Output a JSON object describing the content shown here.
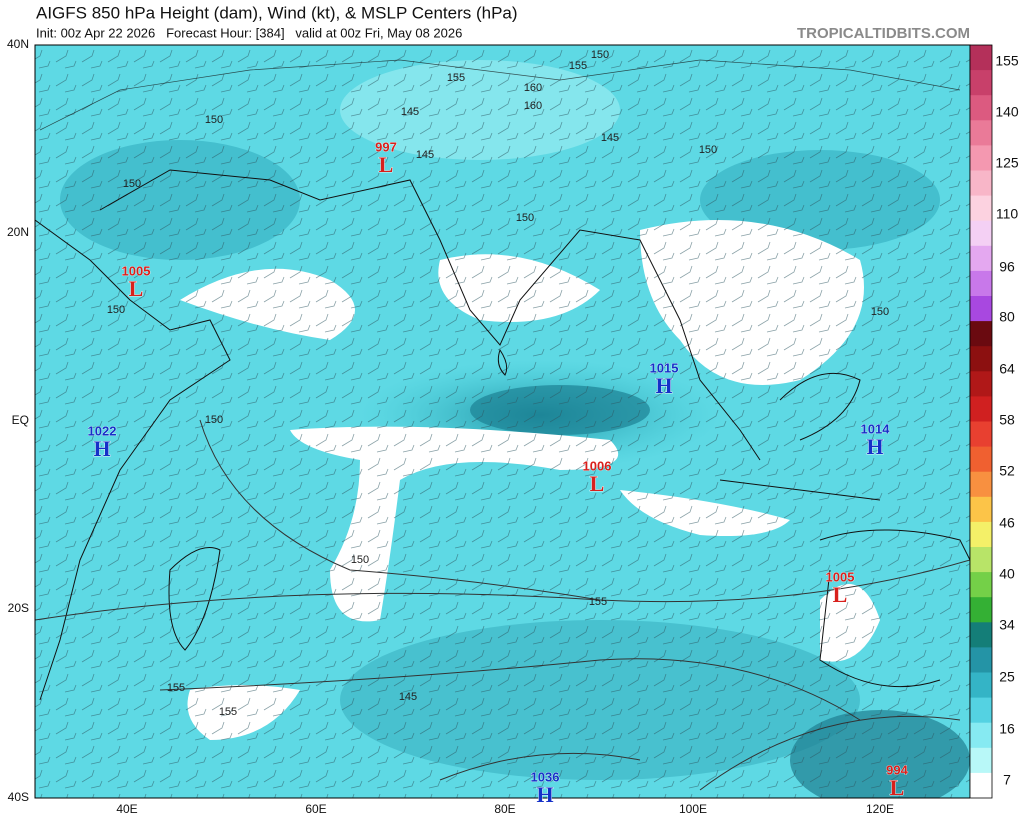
{
  "header": {
    "title": "AIGFS 850 hPa Height (dam), Wind (kt), & MSLP Centers (hPa)",
    "subtitle": "Init: 00z Apr 22 2026   Forecast Hour: [384]   valid at 00z Fri, May 08 2026",
    "watermark": "TROPICALTIDBITS.COM"
  },
  "map": {
    "lat_labels": [
      "40N",
      "20N",
      "EQ",
      "20S",
      "40S"
    ],
    "lon_labels": [
      "40E",
      "60E",
      "80E",
      "100E",
      "120E"
    ],
    "centers": [
      {
        "value": "997",
        "letter": "L"
      },
      {
        "value": "1005",
        "letter": "L"
      },
      {
        "value": "1022",
        "letter": "H"
      },
      {
        "value": "1015",
        "letter": "H"
      },
      {
        "value": "1014",
        "letter": "H"
      },
      {
        "value": "1006",
        "letter": "L"
      },
      {
        "value": "1005",
        "letter": "L"
      },
      {
        "value": "1036",
        "letter": "H"
      },
      {
        "value": "994",
        "letter": "L"
      }
    ],
    "contour_labels": [
      "150",
      "155",
      "160",
      "160",
      "155",
      "145",
      "150",
      "150",
      "145",
      "145",
      "150",
      "150",
      "150",
      "150",
      "150",
      "150",
      "155",
      "155",
      "155",
      "145"
    ]
  },
  "colorbar": {
    "labels": [
      "155",
      "140",
      "125",
      "110",
      "96",
      "80",
      "64",
      "58",
      "52",
      "46",
      "40",
      "34",
      "25",
      "16",
      "7"
    ]
  }
}
